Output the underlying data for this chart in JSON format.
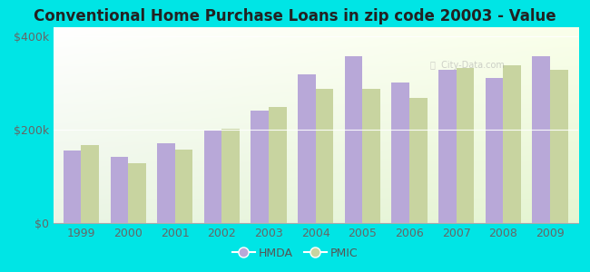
{
  "title": "Conventional Home Purchase Loans in zip code 20003 - Value",
  "years": [
    1999,
    2000,
    2001,
    2002,
    2003,
    2004,
    2005,
    2006,
    2007,
    2008,
    2009
  ],
  "hmda": [
    155000,
    142000,
    172000,
    198000,
    242000,
    318000,
    358000,
    302000,
    328000,
    312000,
    358000
  ],
  "pmic": [
    168000,
    128000,
    158000,
    202000,
    248000,
    288000,
    288000,
    268000,
    332000,
    338000,
    328000
  ],
  "hmda_color": "#b8a8d8",
  "pmic_color": "#c8d4a0",
  "outer_bg": "#00e5e5",
  "ylim": [
    0,
    420000
  ],
  "yticks": [
    0,
    200000,
    400000
  ],
  "ytick_labels": [
    "$0",
    "$200k",
    "$400k"
  ],
  "title_fontsize": 12,
  "tick_fontsize": 9,
  "legend_fontsize": 9,
  "bar_width": 0.38
}
